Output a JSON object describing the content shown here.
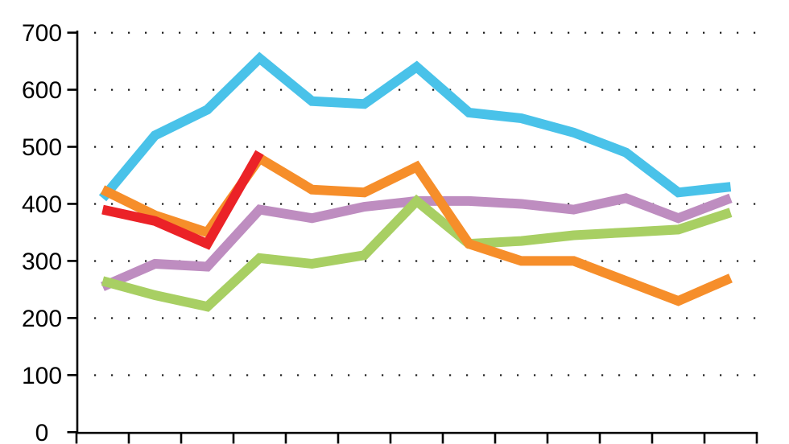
{
  "chart_data": {
    "type": "line",
    "title": "",
    "background": "#ffffff",
    "axis_color": "#000000",
    "grid_dot_color": "#1c1c1c",
    "grid": "dotted-horizontal",
    "legend_position": "none",
    "ylim": [
      0,
      700
    ],
    "y_ticks": [
      0,
      100,
      200,
      300,
      400,
      500,
      600,
      700
    ],
    "y_tick_labels": [
      "0",
      "100",
      "200",
      "300",
      "400",
      "500",
      "600",
      "700"
    ],
    "x_axis": {
      "tick_count": 14,
      "labels_visible": false
    },
    "n_points": 13,
    "series": [
      {
        "name": "series-cyan",
        "color": "#49C2E9",
        "values": [
          410,
          520,
          565,
          655,
          580,
          575,
          640,
          560,
          550,
          525,
          490,
          420,
          430
        ]
      },
      {
        "name": "series-purple",
        "color": "#BE8DC0",
        "values": [
          255,
          295,
          290,
          390,
          375,
          395,
          405,
          405,
          400,
          390,
          410,
          375,
          410
        ]
      },
      {
        "name": "series-green",
        "color": "#A8CF63",
        "values": [
          265,
          240,
          220,
          305,
          295,
          310,
          405,
          330,
          335,
          345,
          350,
          355,
          385
        ]
      },
      {
        "name": "series-orange",
        "color": "#F68E2A",
        "values": [
          425,
          380,
          350,
          480,
          425,
          420,
          465,
          330,
          300,
          300,
          265,
          230,
          270
        ]
      },
      {
        "name": "series-red",
        "color": "#EB2227",
        "values": [
          390,
          370,
          330,
          490
        ]
      }
    ]
  }
}
